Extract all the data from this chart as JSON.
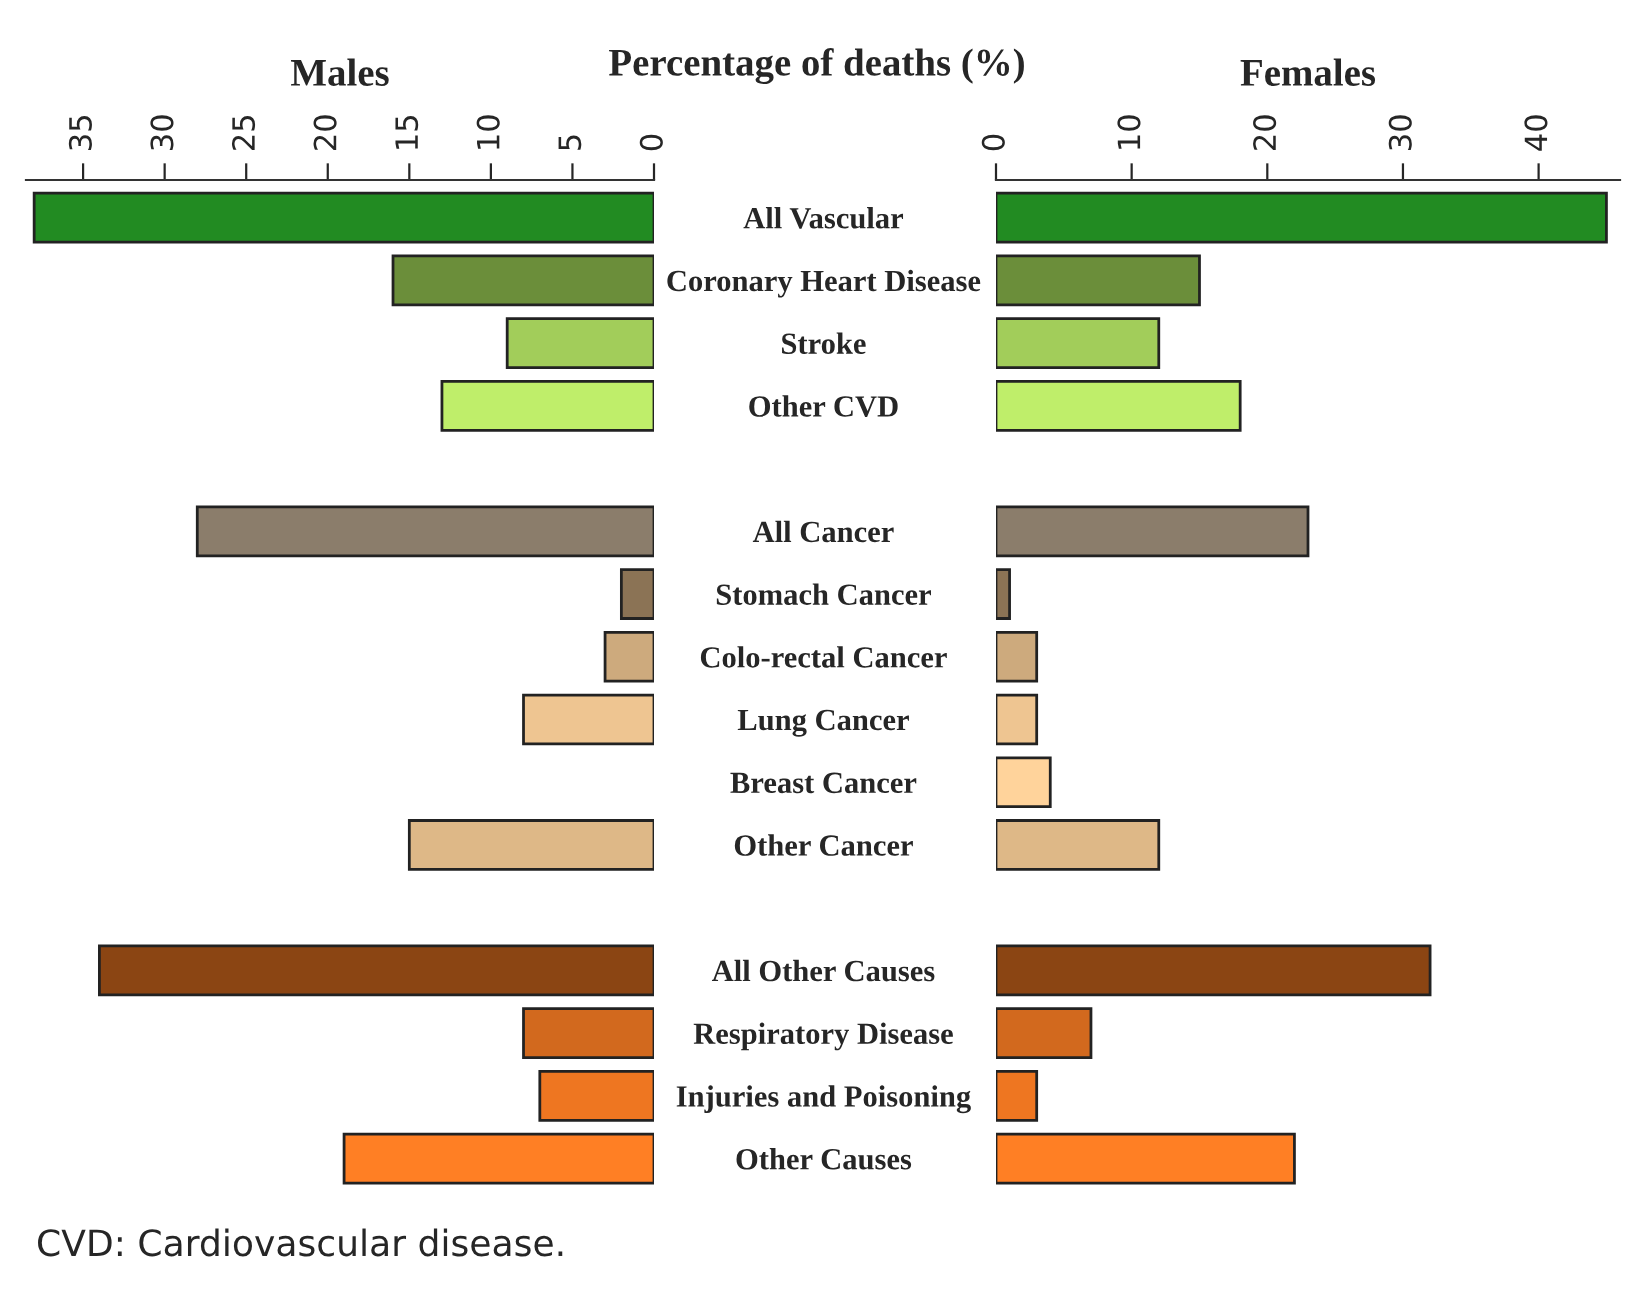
{
  "chart_data": [
    {
      "type": "bar",
      "orientation": "horizontal",
      "title": "Males",
      "categories": [
        "All Vascular",
        "Coronary Heart Disease",
        "Stroke",
        "Other CVD",
        null,
        "All Cancer",
        "Stomach Cancer",
        "Colo-rectal Cancer",
        "Lung Cancer",
        "Breast Cancer",
        "Other Cancer",
        null,
        "All Other Causes",
        "Respiratory Disease",
        "Injuries and Poisoning",
        "Other Causes"
      ],
      "values": [
        38,
        16,
        9,
        13,
        null,
        28,
        2,
        3,
        8,
        null,
        15,
        null,
        34,
        8,
        7,
        19
      ],
      "colors": [
        "#228b22",
        "#6b8e3a",
        "#a2cd5a",
        "#bfee6a",
        null,
        "#8b7d6b",
        "#8b7355",
        "#cdaa7d",
        "#eec591",
        "#ffd39b",
        "#deb887",
        null,
        "#8b4513",
        "#d2691e",
        "#ee7621",
        "#ff7f24"
      ],
      "xlim": [
        38.5,
        0
      ],
      "xticks": [
        35,
        30,
        25,
        20,
        15,
        10,
        5,
        0
      ],
      "annotations": [
        "Percentage of deaths (%)",
        "CVD: Cardiovascular disease."
      ]
    },
    {
      "type": "bar",
      "orientation": "horizontal",
      "title": "Females",
      "tick_labels": "x",
      "values": [
        45,
        15,
        12,
        18,
        null,
        23,
        1,
        3,
        3,
        4,
        12,
        null,
        32,
        7,
        3,
        22
      ],
      "colors": [
        "#228b22",
        "#6b8e3a",
        "#a2cd5a",
        "#bfee6a",
        null,
        "#8b7d6b",
        "#8b7355",
        "#cdaa7d",
        "#eec591",
        "#ffd39b",
        "#deb887",
        null,
        "#8b4513",
        "#d2691e",
        "#ee7621",
        "#ff7f24"
      ],
      "xlim": [
        0,
        46
      ],
      "xticks": [
        0,
        10,
        20,
        30,
        40
      ]
    }
  ]
}
